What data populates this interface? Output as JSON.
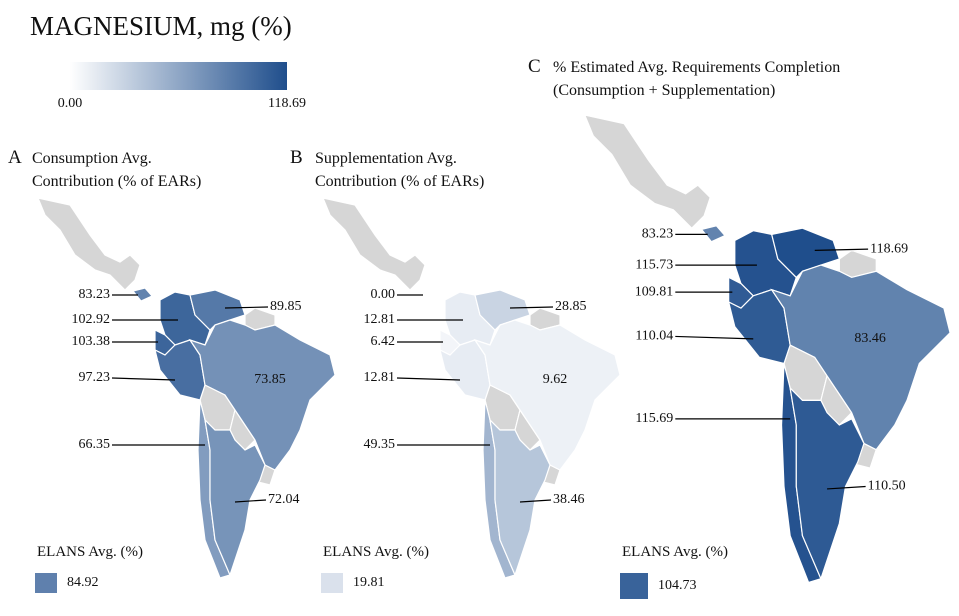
{
  "title": "MAGNESIUM, mg (%)",
  "scale": {
    "colors": [
      "#ffffff",
      "#1f4e8c"
    ],
    "ticks": [
      {
        "value": 0,
        "label": "0.00"
      },
      {
        "value": 118.69,
        "label": "118.69"
      }
    ]
  },
  "legend_label": "ELANS Avg. (%)",
  "panels": [
    {
      "letter": "A",
      "title": [
        "Consumption Avg.",
        "Contribution (% of EARs)"
      ],
      "values": [
        83.23,
        102.92,
        89.85,
        103.38,
        97.23,
        73.85,
        66.35,
        72.04
      ],
      "value_labels": [
        "83.23",
        "102.92",
        "89.85",
        "103.38",
        "97.23",
        "73.85",
        "66.35",
        "72.04"
      ],
      "avg": 84.92
    },
    {
      "letter": "B",
      "title": [
        "Supplementation Avg.",
        "Contribution (% of EARs)"
      ],
      "values": [
        0,
        12.81,
        28.85,
        6.42,
        12.81,
        9.62,
        49.35,
        38.46
      ],
      "value_labels": [
        "0.00",
        "12.81",
        "28.85",
        "6.42",
        "12.81",
        "9.62",
        "49.35",
        "38.46"
      ],
      "avg": 19.81
    },
    {
      "letter": "C",
      "title": [
        "% Estimated Avg. Requirements Completion",
        "(Consumption + Supplementation)"
      ],
      "values": [
        83.23,
        115.73,
        118.69,
        109.81,
        110.04,
        83.46,
        115.69,
        110.5
      ],
      "value_labels": [
        "83.23",
        "115.73",
        "118.69",
        "109.81",
        "110.04",
        "83.46",
        "115.69",
        "110.50"
      ],
      "avg": 104.73
    }
  ]
}
